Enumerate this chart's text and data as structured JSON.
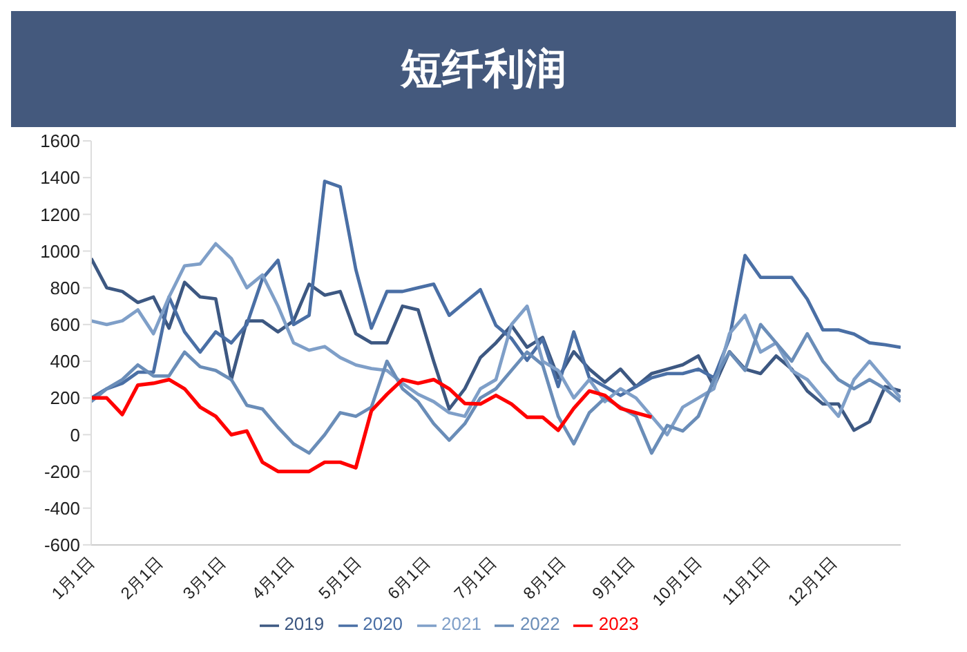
{
  "chart_data": {
    "type": "line",
    "title": "短纤利润",
    "x": [
      "--01-01",
      "--01-08",
      "--01-15",
      "--01-22",
      "--01-29",
      "--02-05",
      "--02-12",
      "--02-19",
      "--02-26",
      "--03-05",
      "--03-12",
      "--03-19",
      "--03-26",
      "--04-02",
      "--04-09",
      "--04-16",
      "--04-23",
      "--04-30",
      "--05-07",
      "--05-14",
      "--05-21",
      "--05-28",
      "--06-04",
      "--06-11",
      "--06-18",
      "--06-25",
      "--07-02",
      "--07-09",
      "--07-16",
      "--07-23",
      "--07-30",
      "--08-06",
      "--08-13",
      "--08-20",
      "--08-27",
      "--09-03",
      "--09-10",
      "--09-17",
      "--09-24",
      "--10-01",
      "--10-08",
      "--10-15",
      "--10-22",
      "--10-29",
      "--11-05",
      "--11-12",
      "--11-19",
      "--11-26",
      "--12-03",
      "--12-10",
      "--12-17",
      "--12-24",
      "--12-31"
    ],
    "series": [
      {
        "name": "2019",
        "color": "#3d5882",
        "values": [
          960,
          800,
          780,
          720,
          750,
          580,
          830,
          750,
          740,
          300,
          620,
          620,
          560,
          620,
          820,
          760,
          780,
          550,
          500,
          500,
          700,
          680,
          400,
          140,
          250,
          420,
          500,
          595,
          476,
          530,
          310,
          452,
          357,
          286,
          357,
          262,
          333,
          357,
          381,
          429,
          262,
          452,
          357,
          333,
          429,
          357,
          238,
          167,
          167,
          24,
          71,
          262,
          238
        ]
      },
      {
        "name": "2020",
        "color": "#4a6fa5",
        "values": [
          200,
          250,
          280,
          340,
          340,
          750,
          560,
          450,
          560,
          500,
          600,
          850,
          950,
          600,
          650,
          1380,
          1350,
          900,
          580,
          780,
          780,
          800,
          820,
          650,
          720,
          790,
          595,
          524,
          405,
          520,
          262,
          560,
          310,
          262,
          214,
          262,
          310,
          333,
          333,
          357,
          310,
          524,
          976,
          857,
          857,
          857,
          738,
          571,
          571,
          548,
          500,
          490,
          476
        ]
      },
      {
        "name": "2021",
        "color": "#7f9fc8",
        "values": [
          620,
          600,
          620,
          680,
          550,
          750,
          920,
          930,
          1040,
          960,
          800,
          870,
          700,
          500,
          460,
          480,
          420,
          380,
          360,
          350,
          280,
          220,
          180,
          120,
          100,
          250,
          300,
          600,
          700,
          400,
          350,
          200,
          300,
          180,
          250,
          200,
          100,
          0,
          150,
          200,
          250,
          550,
          650,
          450,
          500,
          350,
          300,
          200,
          100,
          300,
          400,
          300,
          200
        ]
      },
      {
        "name": "2022",
        "color": "#6a8db8",
        "values": [
          180,
          250,
          300,
          380,
          320,
          320,
          450,
          370,
          350,
          300,
          160,
          140,
          40,
          -50,
          -100,
          0,
          120,
          100,
          150,
          400,
          250,
          180,
          60,
          -30,
          60,
          200,
          250,
          350,
          450,
          380,
          100,
          -50,
          120,
          200,
          150,
          100,
          -100,
          50,
          20,
          100,
          300,
          450,
          350,
          600,
          500,
          400,
          550,
          400,
          300,
          250,
          300,
          250,
          180
        ]
      },
      {
        "name": "2023",
        "color": "#ff0000",
        "values": [
          200,
          200,
          110,
          270,
          280,
          300,
          250,
          150,
          100,
          0,
          20,
          -150,
          -200,
          -200,
          -200,
          -150,
          -150,
          -180,
          130,
          220,
          300,
          280,
          300,
          250,
          170,
          167,
          214,
          167,
          95,
          95,
          24,
          143,
          238,
          214,
          143,
          119,
          95,
          null,
          null,
          null,
          null,
          null,
          null,
          null,
          null,
          null,
          null,
          null,
          null,
          null,
          null,
          null,
          null
        ]
      }
    ],
    "xlim": [
      "--01-01",
      "--12-31"
    ],
    "xticks": [
      {
        "value": "--01-01",
        "label": "1月1日"
      },
      {
        "value": "--02-01",
        "label": "2月1日"
      },
      {
        "value": "--03-01",
        "label": "3月1日"
      },
      {
        "value": "--04-01",
        "label": "4月1日"
      },
      {
        "value": "--05-01",
        "label": "5月1日"
      },
      {
        "value": "--06-01",
        "label": "6月1日"
      },
      {
        "value": "--07-01",
        "label": "7月1日"
      },
      {
        "value": "--08-01",
        "label": "8月1日"
      },
      {
        "value": "--09-01",
        "label": "9月1日"
      },
      {
        "value": "--10-01",
        "label": "10月1日"
      },
      {
        "value": "--11-01",
        "label": "11月1日"
      },
      {
        "value": "--12-01",
        "label": "12月1日"
      }
    ],
    "ylim": [
      -600,
      1600
    ],
    "yticks": [
      -600,
      -400,
      -200,
      0,
      200,
      400,
      600,
      800,
      1000,
      1200,
      1400,
      1600
    ],
    "grid": false,
    "legend": "bottom",
    "marker": "none",
    "line_style": "solid"
  }
}
